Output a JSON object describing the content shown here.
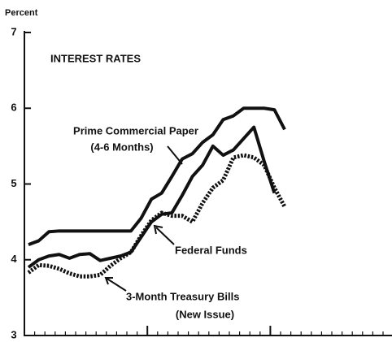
{
  "chart_data": {
    "type": "line",
    "title": "INTEREST RATES",
    "y_label": "Percent",
    "categories": [
      null,
      null,
      null,
      null,
      null,
      null,
      null,
      null,
      null,
      null,
      null,
      null,
      null,
      null,
      null,
      null,
      null,
      null,
      null,
      null,
      null,
      null,
      null,
      null,
      null,
      null
    ],
    "series": [
      {
        "name": "Prime Commercial Paper",
        "color": "#111111",
        "style": "solid",
        "values": [
          4.2,
          4.25,
          4.37,
          4.38,
          4.38,
          4.38,
          4.38,
          4.38,
          4.38,
          4.38,
          4.38,
          4.55,
          4.8,
          4.88,
          5.1,
          5.33,
          5.4,
          5.55,
          5.65,
          5.85,
          5.9,
          6.0,
          6.0,
          6.0,
          5.98,
          5.72
        ]
      },
      {
        "name": "Federal Funds",
        "color": "#111111",
        "style": "solid",
        "values": [
          3.9,
          4.0,
          4.05,
          4.07,
          4.02,
          4.07,
          4.08,
          3.99,
          4.02,
          4.05,
          4.1,
          4.3,
          4.5,
          4.6,
          4.62,
          4.85,
          5.1,
          5.25,
          5.5,
          5.38,
          5.45,
          5.6,
          5.75,
          5.3,
          4.88,
          null
        ]
      },
      {
        "name": "3-Month Treasury Bills",
        "color": "#111111",
        "style": "dotted",
        "values": [
          3.83,
          3.93,
          3.92,
          3.88,
          3.82,
          3.78,
          3.78,
          3.8,
          3.92,
          4.02,
          4.1,
          4.32,
          4.52,
          4.62,
          4.58,
          4.58,
          4.5,
          4.75,
          4.95,
          5.05,
          5.35,
          5.38,
          5.35,
          5.25,
          4.95,
          4.7
        ]
      }
    ],
    "annotations": [
      "(4-6 Months)",
      "(New Issue)"
    ],
    "ylim": [
      3,
      7
    ],
    "yticks": [
      3,
      4,
      5,
      6,
      7
    ],
    "grid": false
  }
}
